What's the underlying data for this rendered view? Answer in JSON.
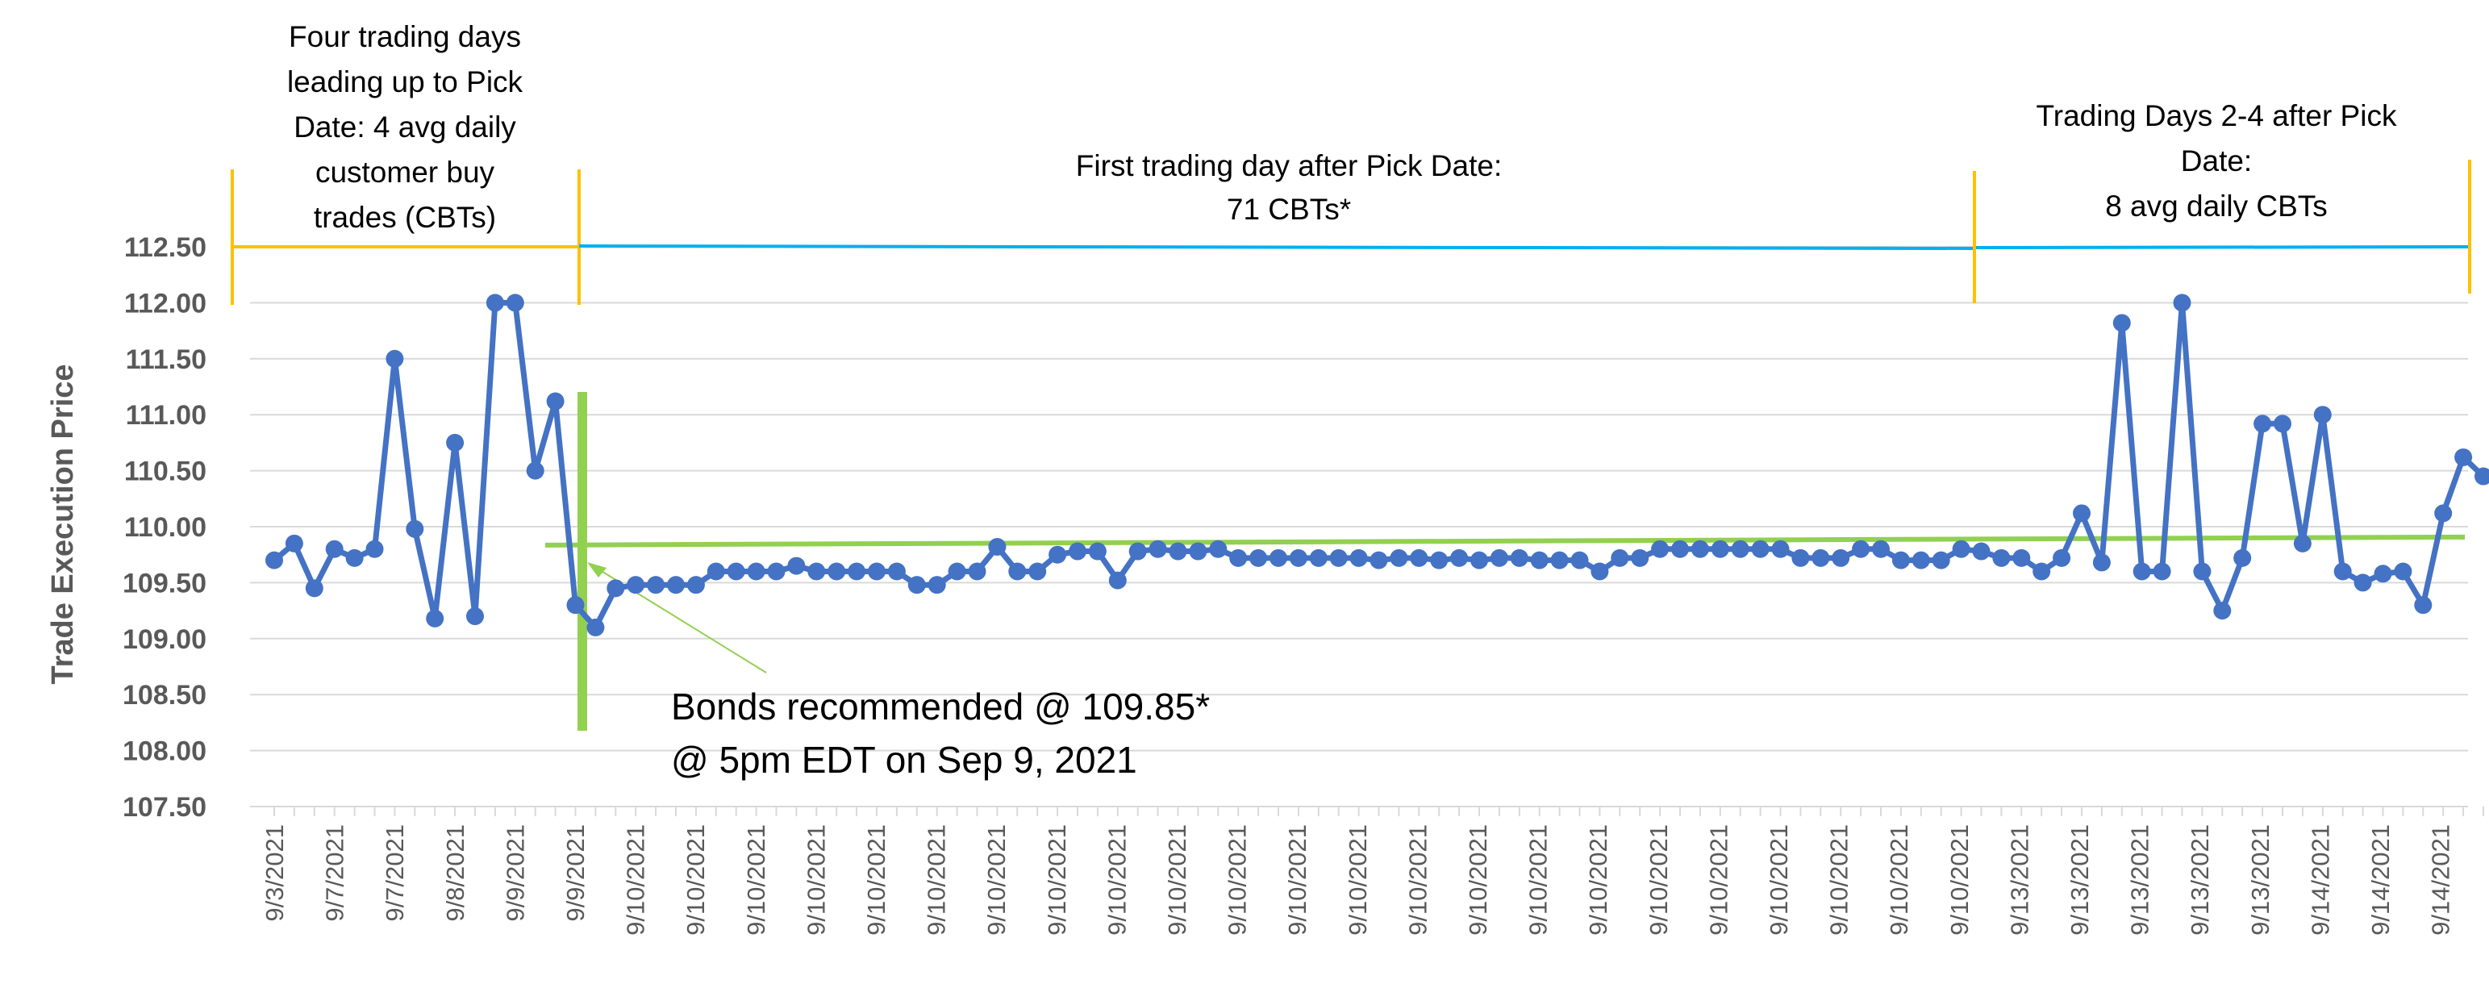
{
  "chart_data": {
    "type": "line",
    "ylabel": "Trade Execution Price",
    "ylim": [
      107.5,
      112.5
    ],
    "yticks": [
      "112.50",
      "112.00",
      "111.50",
      "111.00",
      "110.50",
      "110.00",
      "109.50",
      "109.00",
      "108.50",
      "108.00",
      "107.50"
    ],
    "grid": true,
    "series": [
      {
        "color": "#4472C4",
        "values": [
          109.7,
          109.85,
          109.45,
          109.8,
          109.72,
          109.8,
          111.5,
          109.98,
          109.18,
          110.75,
          109.2,
          112.0,
          112.0,
          110.5,
          111.12,
          109.3,
          109.1,
          109.45,
          109.48,
          109.48,
          109.48,
          109.48,
          109.6,
          109.6,
          109.6,
          109.6,
          109.65,
          109.6,
          109.6,
          109.6,
          109.6,
          109.6,
          109.48,
          109.48,
          109.6,
          109.6,
          109.82,
          109.6,
          109.6,
          109.75,
          109.78,
          109.78,
          109.52,
          109.78,
          109.8,
          109.78,
          109.78,
          109.8,
          109.72,
          109.72,
          109.72,
          109.72,
          109.72,
          109.72,
          109.72,
          109.7,
          109.72,
          109.72,
          109.7,
          109.72,
          109.7,
          109.72,
          109.72,
          109.7,
          109.7,
          109.7,
          109.6,
          109.72,
          109.72,
          109.8,
          109.8,
          109.8,
          109.8,
          109.8,
          109.8,
          109.8,
          109.72,
          109.72,
          109.72,
          109.8,
          109.8,
          109.7,
          109.7,
          109.7,
          109.8,
          109.78,
          109.72,
          109.72,
          109.6,
          109.72,
          110.12,
          109.68,
          111.82,
          109.6,
          109.6,
          112.0,
          109.6,
          109.25,
          109.72,
          110.92,
          110.92,
          109.85,
          111.0,
          109.6,
          109.5,
          109.58,
          109.6,
          109.3,
          110.12,
          110.62,
          110.45
        ]
      }
    ],
    "x_tick_labels": [
      "9/3/2021",
      "9/7/2021",
      "9/7/2021",
      "9/8/2021",
      "9/9/2021",
      "9/9/2021",
      "9/10/2021",
      "9/10/2021",
      "9/10/2021",
      "9/10/2021",
      "9/10/2021",
      "9/10/2021",
      "9/10/2021",
      "9/10/2021",
      "9/10/2021",
      "9/10/2021",
      "9/10/2021",
      "9/10/2021",
      "9/10/2021",
      "9/10/2021",
      "9/10/2021",
      "9/10/2021",
      "9/10/2021",
      "9/10/2021",
      "9/10/2021",
      "9/10/2021",
      "9/10/2021",
      "9/10/2021",
      "9/10/2021",
      "9/13/2021",
      "9/13/2021",
      "9/13/2021",
      "9/13/2021",
      "9/13/2021",
      "9/14/2021",
      "9/14/2021",
      "9/14/2021"
    ],
    "reference_price": 109.85,
    "period_annotations": [
      {
        "lines": [
          "Four trading days",
          "leading up to Pick",
          "Date: 4 avg daily",
          "customer buy",
          "trades (CBTs)"
        ],
        "color": "#FFC000"
      },
      {
        "lines": [
          "First trading day after Pick Date:",
          "71 CBTs*"
        ],
        "color": "#00B0F0"
      },
      {
        "lines": [
          "Trading Days 2-4 after Pick",
          "Date:",
          "8 avg daily CBTs"
        ],
        "color": "#00B0F0"
      }
    ],
    "callout": {
      "lines": [
        "Bonds recommended @ 109.85*",
        "@ 5pm EDT on Sep 9, 2021"
      ]
    },
    "colors": {
      "price_line": "#4472C4",
      "recommendation": "#92D050",
      "pre_period": "#FFC000",
      "post_period": "#00B0F0",
      "gridline": "#D9D9D9"
    }
  }
}
